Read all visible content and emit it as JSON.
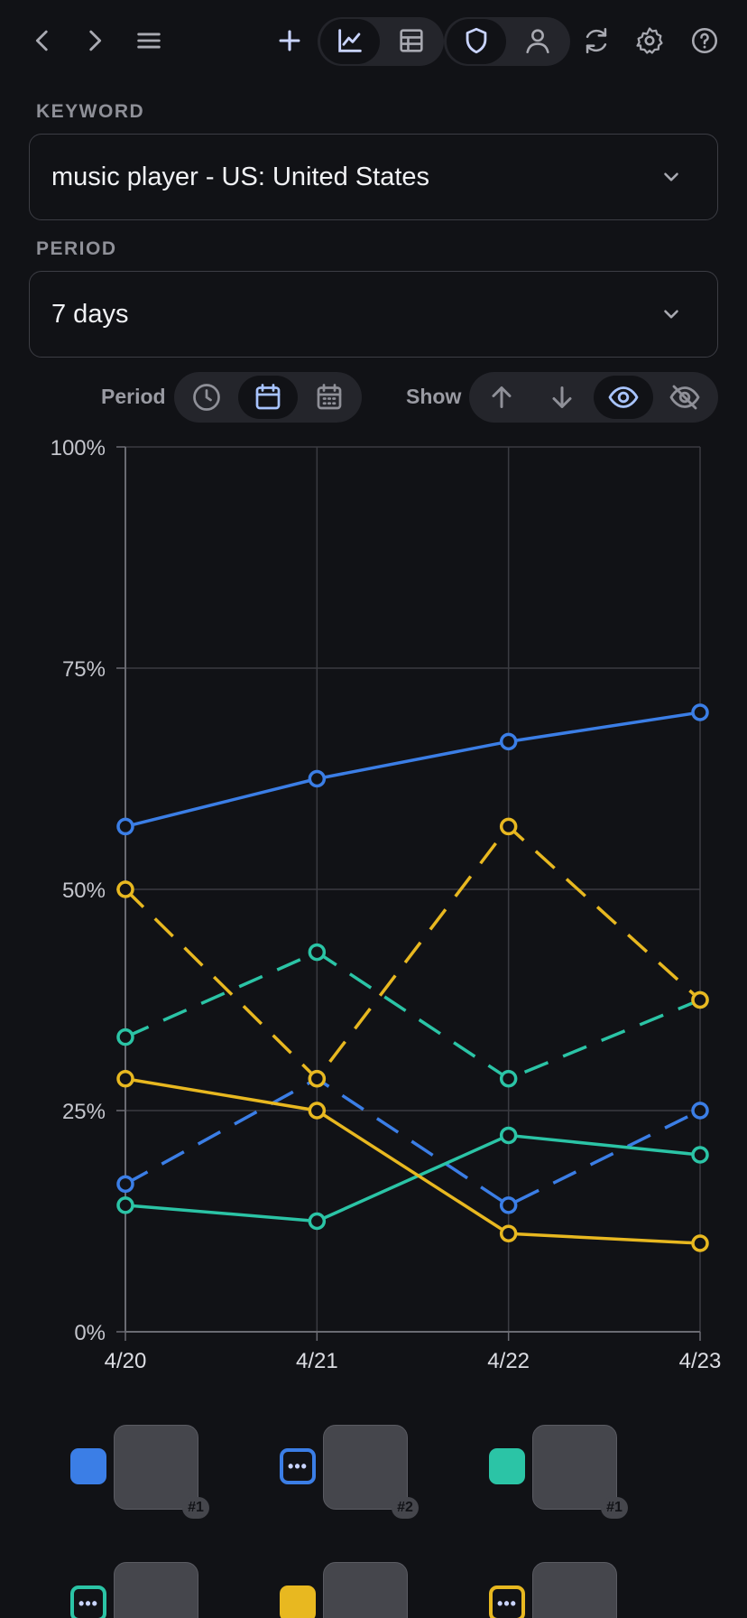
{
  "toolbar": {
    "icons": [
      "chevron-left-icon",
      "chevron-right-icon",
      "menu-icon",
      "plus-icon",
      "line-chart-icon",
      "table-icon",
      "shield-icon",
      "user-icon",
      "refresh-icon",
      "gear-icon",
      "help-icon"
    ],
    "active_view": "line-chart",
    "active_scope": "shield"
  },
  "keyword": {
    "label": "KEYWORD",
    "value": "music player - US: United States"
  },
  "period": {
    "label": "PERIOD",
    "value": "7 days"
  },
  "controls": {
    "period_label": "Period",
    "show_label": "Show",
    "period_options": [
      "clock-icon",
      "calendar-icon",
      "calendar-grid-icon"
    ],
    "period_active": "calendar-icon",
    "show_options": [
      "arrow-up-icon",
      "arrow-down-icon",
      "eye-icon",
      "eye-off-icon"
    ],
    "show_active": "eye-icon"
  },
  "chart_data": {
    "type": "line",
    "x": [
      "4/20",
      "4/21",
      "4/22",
      "4/23"
    ],
    "ylim": [
      0,
      100
    ],
    "yticks": [
      "0%",
      "25%",
      "50%",
      "75%",
      "100%"
    ],
    "grid": true,
    "series": [
      {
        "color": "#3b7ee6",
        "dashed": false,
        "values": [
          57.1,
          62.5,
          66.7,
          70.0
        ]
      },
      {
        "color": "#3b7ee6",
        "dashed": true,
        "values": [
          16.7,
          28.6,
          14.3,
          25.0
        ]
      },
      {
        "color": "#2bc4a6",
        "dashed": false,
        "values": [
          14.3,
          12.5,
          22.2,
          20.0
        ]
      },
      {
        "color": "#2bc4a6",
        "dashed": true,
        "values": [
          33.3,
          42.9,
          28.6,
          37.5
        ]
      },
      {
        "color": "#e8b820",
        "dashed": false,
        "values": [
          28.6,
          25.0,
          11.1,
          10.0
        ]
      },
      {
        "color": "#e8b820",
        "dashed": true,
        "values": [
          50.0,
          28.6,
          57.1,
          37.5
        ]
      }
    ]
  },
  "legend": [
    {
      "color": "#3b7ee6",
      "style": "filled",
      "rank": "#1"
    },
    {
      "color": "#3b7ee6",
      "style": "outline-dots",
      "rank": "#2"
    },
    {
      "color": "#2bc4a6",
      "style": "filled",
      "rank": "#1"
    },
    {
      "color": "#2bc4a6",
      "style": "outline-dots",
      "rank": ""
    },
    {
      "color": "#e8b820",
      "style": "filled",
      "rank": ""
    },
    {
      "color": "#e8b820",
      "style": "outline-dots",
      "rank": ""
    }
  ]
}
